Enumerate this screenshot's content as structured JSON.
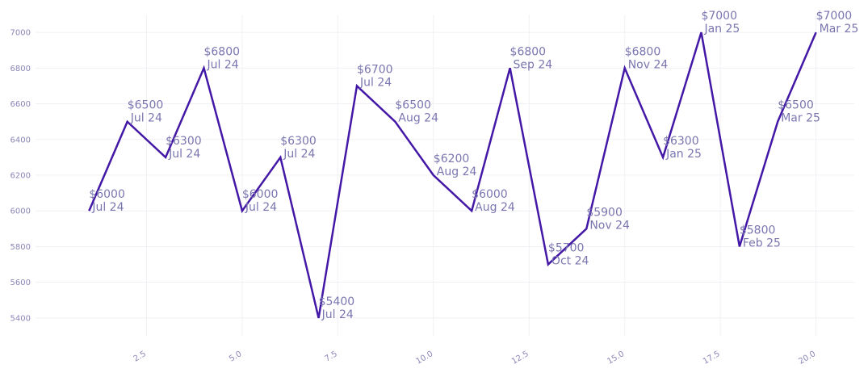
{
  "chart_data": {
    "type": "line",
    "title": "",
    "xlabel": "",
    "ylabel": "",
    "xlim": [
      -0.4,
      21.0
    ],
    "ylim": [
      5300,
      7100
    ],
    "grid": true,
    "legend": "none",
    "x_ticks": [
      2.5,
      5.0,
      7.5,
      10.0,
      12.5,
      15.0,
      17.5,
      20.0
    ],
    "x_tick_labels": [
      "2.5",
      "5.0",
      "7.5",
      "10.0",
      "12.5",
      "15.0",
      "17.5",
      "20.0"
    ],
    "y_ticks": [
      5400,
      5600,
      5800,
      6000,
      6200,
      6400,
      6600,
      6800,
      7000
    ],
    "y_tick_labels": [
      "5400",
      "5600",
      "5800",
      "6000",
      "6200",
      "6400",
      "6600",
      "6800",
      "7000"
    ],
    "line_color": "#4318a6",
    "text_color": "#7a76b0",
    "series": [
      {
        "x": [
          1,
          2,
          3,
          4,
          5,
          6,
          7,
          8,
          9,
          10,
          11,
          12,
          13,
          14,
          15,
          16,
          17,
          18,
          19,
          20
        ],
        "values": [
          6000,
          6500,
          6300,
          6800,
          6000,
          6300,
          5400,
          6700,
          6500,
          6200,
          6000,
          6800,
          5700,
          5900,
          6800,
          6300,
          7000,
          5800,
          6500,
          7000
        ],
        "labels": [
          "$6000",
          "$6500",
          "$6300",
          "$6800",
          "$6000",
          "$6300",
          "$5400",
          "$6700",
          "$6500",
          "$6200",
          "$6000",
          "$6800",
          "$5700",
          "$5900",
          "$6800",
          "$6300",
          "$7000",
          "$5800",
          "$6500",
          "$7000"
        ],
        "dates": [
          "Jul 24",
          "Jul 24",
          "Jul 24",
          "Jul 24",
          "Jul 24",
          "Jul 24",
          "Jul 24",
          "Jul 24",
          "Aug 24",
          "Aug 24",
          "Aug 24",
          "Sep 24",
          "Oct 24",
          "Nov 24",
          "Nov 24",
          "Jan 25",
          "Jan 25",
          "Feb 25",
          "Mar 25",
          "Mar 25"
        ]
      }
    ]
  }
}
